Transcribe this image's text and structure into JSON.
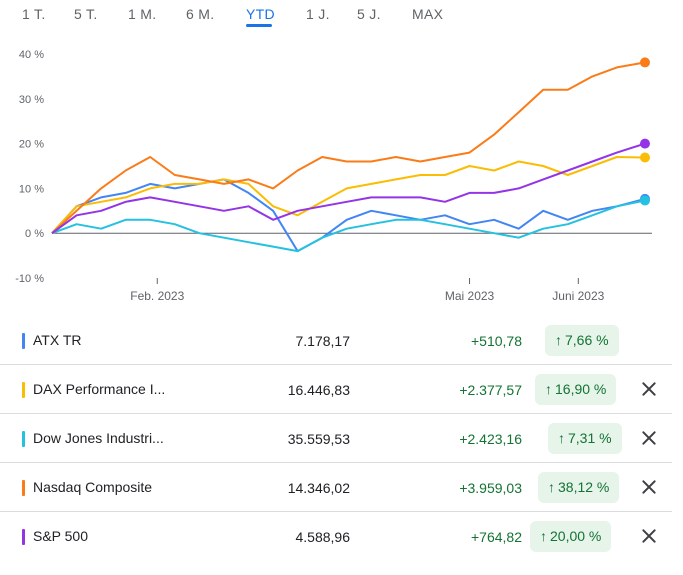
{
  "tabs": [
    {
      "label": "1 T."
    },
    {
      "label": "5 T."
    },
    {
      "label": "1 M."
    },
    {
      "label": "6 M."
    },
    {
      "label": "YTD",
      "active": true
    },
    {
      "label": "1 J."
    },
    {
      "label": "5 J."
    },
    {
      "label": "MAX"
    }
  ],
  "chart_data": {
    "type": "line",
    "y_unit": "%",
    "y_ticks": [
      "40 %",
      "30 %",
      "20 %",
      "10 %",
      "0 %",
      "-10 %"
    ],
    "y_tick_values": [
      40,
      30,
      20,
      10,
      0,
      -10
    ],
    "ylim": [
      -10,
      40
    ],
    "x_ticks": [
      "Feb. 2023",
      "Mai 2023",
      "Juni 2023"
    ],
    "x_tick_dates": [
      "2023-02-01",
      "2023-05-01",
      "2023-06-01"
    ],
    "xlim": [
      "2023-01-02",
      "2023-06-22"
    ],
    "grid": false,
    "baseline": 0,
    "series": [
      {
        "name": "ATX TR",
        "color": "#4285f4",
        "x": [
          "2023-01-02",
          "2023-01-09",
          "2023-01-16",
          "2023-01-23",
          "2023-01-30",
          "2023-02-06",
          "2023-02-13",
          "2023-02-20",
          "2023-02-27",
          "2023-03-06",
          "2023-03-13",
          "2023-03-20",
          "2023-03-27",
          "2023-04-03",
          "2023-04-10",
          "2023-04-17",
          "2023-04-24",
          "2023-05-01",
          "2023-05-08",
          "2023-05-15",
          "2023-05-22",
          "2023-05-29",
          "2023-06-05",
          "2023-06-12",
          "2023-06-20"
        ],
        "values": [
          0,
          6,
          8,
          9,
          11,
          10,
          11,
          12,
          9,
          5,
          -4,
          -1,
          3,
          5,
          4,
          3,
          4,
          2,
          3,
          1,
          5,
          3,
          5,
          6,
          7.66
        ]
      },
      {
        "name": "DAX Performance I...",
        "color": "#fbbc04",
        "x": [
          "2023-01-02",
          "2023-01-09",
          "2023-01-16",
          "2023-01-23",
          "2023-01-30",
          "2023-02-06",
          "2023-02-13",
          "2023-02-20",
          "2023-02-27",
          "2023-03-06",
          "2023-03-13",
          "2023-03-20",
          "2023-03-27",
          "2023-04-03",
          "2023-04-10",
          "2023-04-17",
          "2023-04-24",
          "2023-05-01",
          "2023-05-08",
          "2023-05-15",
          "2023-05-22",
          "2023-05-29",
          "2023-06-05",
          "2023-06-12",
          "2023-06-20"
        ],
        "values": [
          0,
          6,
          7,
          8,
          10,
          11,
          11,
          12,
          11,
          6,
          4,
          7,
          10,
          11,
          12,
          13,
          13,
          15,
          14,
          16,
          15,
          13,
          15,
          17,
          16.9
        ]
      },
      {
        "name": "Dow Jones Industri...",
        "color": "#24c1e0",
        "x": [
          "2023-01-02",
          "2023-01-09",
          "2023-01-16",
          "2023-01-23",
          "2023-01-30",
          "2023-02-06",
          "2023-02-13",
          "2023-02-20",
          "2023-02-27",
          "2023-03-06",
          "2023-03-13",
          "2023-03-20",
          "2023-03-27",
          "2023-04-03",
          "2023-04-10",
          "2023-04-17",
          "2023-04-24",
          "2023-05-01",
          "2023-05-08",
          "2023-05-15",
          "2023-05-22",
          "2023-05-29",
          "2023-06-05",
          "2023-06-12",
          "2023-06-20"
        ],
        "values": [
          0,
          2,
          1,
          3,
          3,
          2,
          0,
          -1,
          -2,
          -3,
          -4,
          -1,
          1,
          2,
          3,
          3,
          2,
          1,
          0,
          -1,
          1,
          2,
          4,
          6,
          7.31
        ]
      },
      {
        "name": "Nasdaq Composite",
        "color": "#fa7b17",
        "x": [
          "2023-01-02",
          "2023-01-09",
          "2023-01-16",
          "2023-01-23",
          "2023-01-30",
          "2023-02-06",
          "2023-02-13",
          "2023-02-20",
          "2023-02-27",
          "2023-03-06",
          "2023-03-13",
          "2023-03-20",
          "2023-03-27",
          "2023-04-03",
          "2023-04-10",
          "2023-04-17",
          "2023-04-24",
          "2023-05-01",
          "2023-05-08",
          "2023-05-15",
          "2023-05-22",
          "2023-05-29",
          "2023-06-05",
          "2023-06-12",
          "2023-06-20"
        ],
        "values": [
          0,
          5,
          10,
          14,
          17,
          13,
          12,
          11,
          12,
          10,
          14,
          17,
          16,
          16,
          17,
          16,
          17,
          18,
          22,
          27,
          32,
          32,
          35,
          37,
          38.12
        ]
      },
      {
        "name": "S&P 500",
        "color": "#9334e6",
        "x": [
          "2023-01-02",
          "2023-01-09",
          "2023-01-16",
          "2023-01-23",
          "2023-01-30",
          "2023-02-06",
          "2023-02-13",
          "2023-02-20",
          "2023-02-27",
          "2023-03-06",
          "2023-03-13",
          "2023-03-20",
          "2023-03-27",
          "2023-04-03",
          "2023-04-10",
          "2023-04-17",
          "2023-04-24",
          "2023-05-01",
          "2023-05-08",
          "2023-05-15",
          "2023-05-22",
          "2023-05-29",
          "2023-06-05",
          "2023-06-12",
          "2023-06-20"
        ],
        "values": [
          0,
          4,
          5,
          7,
          8,
          7,
          6,
          5,
          6,
          3,
          5,
          6,
          7,
          8,
          8,
          8,
          7,
          9,
          9,
          10,
          12,
          14,
          16,
          18,
          20.0
        ]
      }
    ]
  },
  "rows": [
    {
      "name": "ATX TR",
      "color": "#4285f4",
      "price": "7.178,17",
      "change": "+510,78",
      "pct": "7,66 %",
      "arrow": "↑",
      "removable": false
    },
    {
      "name": "DAX Performance I...",
      "color": "#fbbc04",
      "price": "16.446,83",
      "change": "+2.377,57",
      "pct": "16,90 %",
      "arrow": "↑",
      "removable": true
    },
    {
      "name": "Dow Jones Industri...",
      "color": "#24c1e0",
      "price": "35.559,53",
      "change": "+2.423,16",
      "pct": "7,31 %",
      "arrow": "↑",
      "removable": true
    },
    {
      "name": "Nasdaq Composite",
      "color": "#fa7b17",
      "price": "14.346,02",
      "change": "+3.959,03",
      "pct": "38,12 %",
      "arrow": "↑",
      "removable": true
    },
    {
      "name": "S&P 500",
      "color": "#9334e6",
      "price": "4.588,96",
      "change": "+764,82",
      "pct": "20,00 %",
      "arrow": "↑",
      "removable": true
    }
  ]
}
